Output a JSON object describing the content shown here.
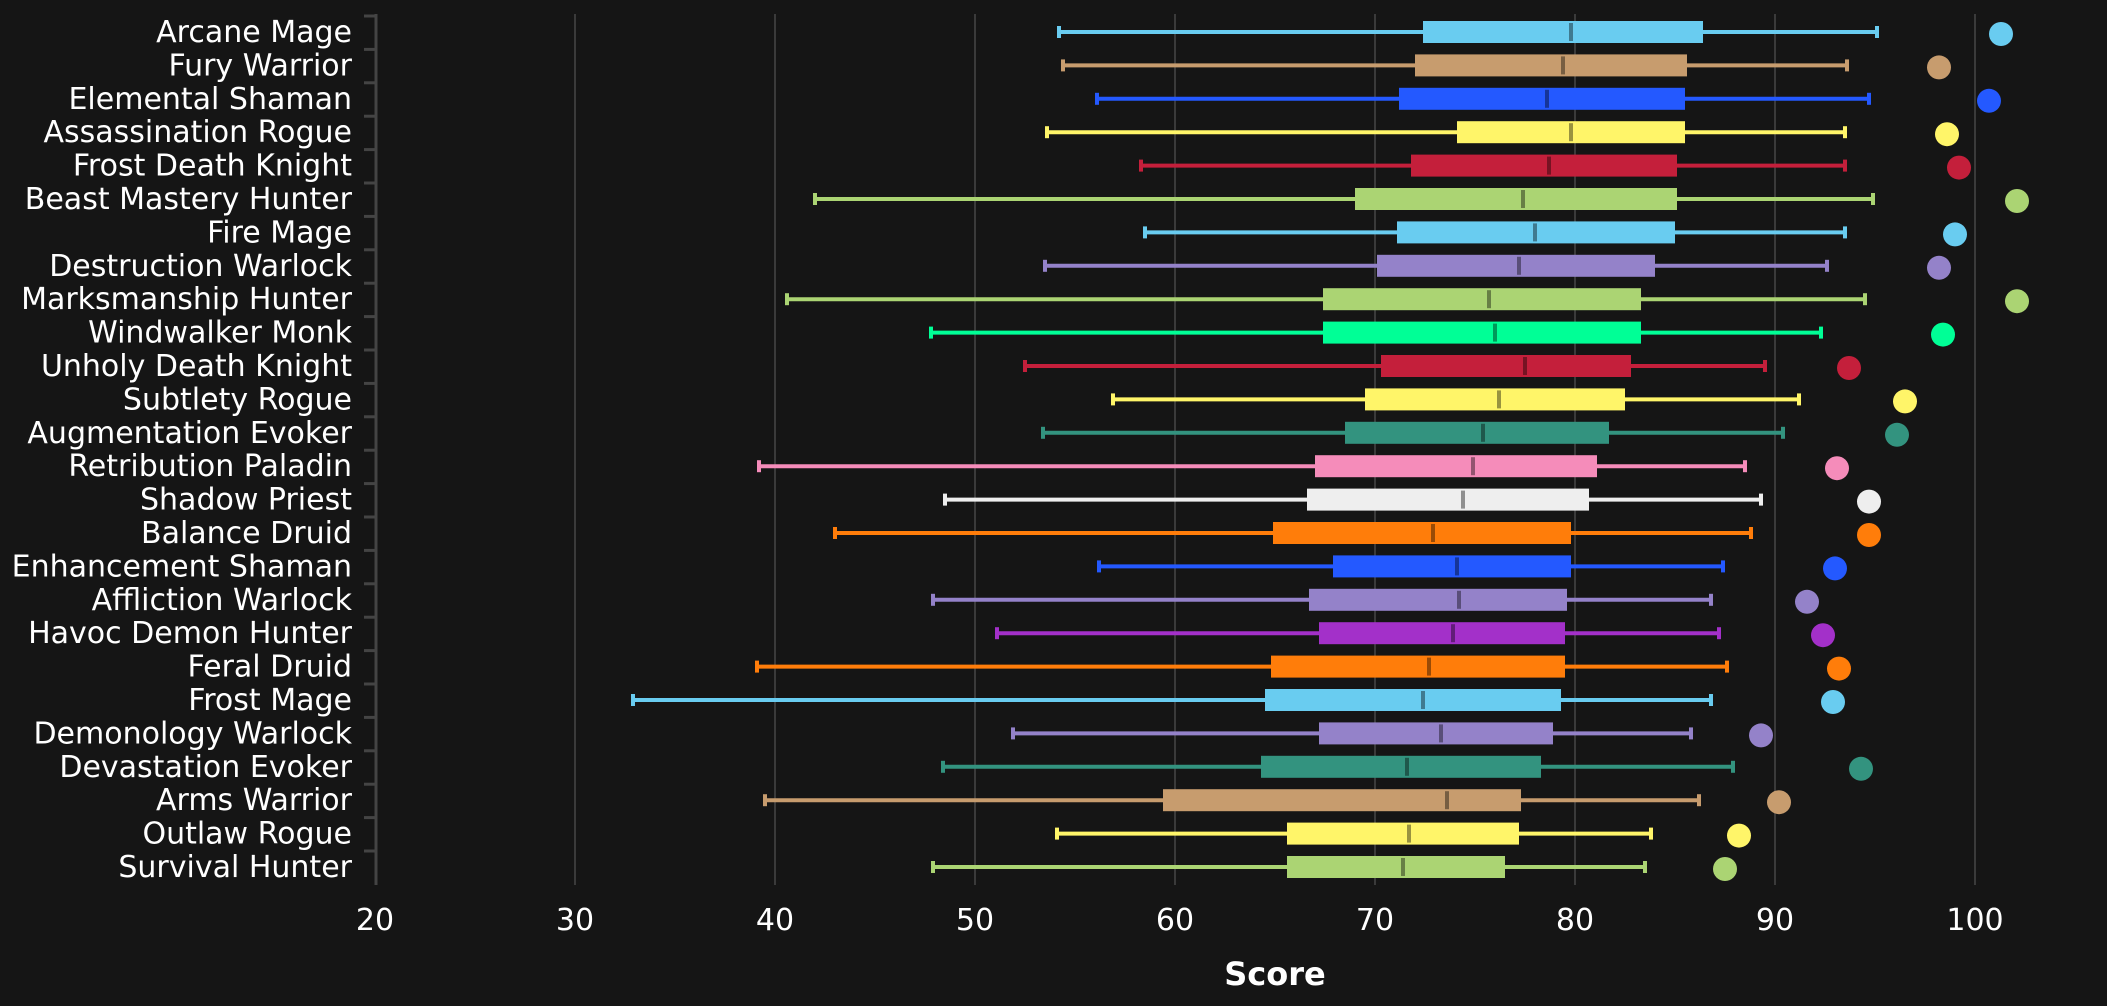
{
  "chart_data": {
    "type": "box",
    "title": "",
    "xlabel": "Score",
    "ylabel": "",
    "xlim": [
      20,
      105
    ],
    "xticks": [
      20,
      30,
      40,
      50,
      60,
      70,
      80,
      90,
      100
    ],
    "grid": true,
    "legend": "none",
    "series": [
      {
        "name": "Arcane Mage",
        "color": "#69CCF0",
        "min": 54.2,
        "q1": 72.4,
        "median": 79.8,
        "q3": 86.4,
        "max": 95.1,
        "max_point": 101.3
      },
      {
        "name": "Fury Warrior",
        "color": "#C79C6E",
        "min": 54.4,
        "q1": 72.0,
        "median": 79.4,
        "q3": 85.6,
        "max": 93.6,
        "max_point": 98.2
      },
      {
        "name": "Elemental Shaman",
        "color": "#2459FF",
        "min": 56.1,
        "q1": 71.2,
        "median": 78.6,
        "q3": 85.5,
        "max": 94.7,
        "max_point": 100.7
      },
      {
        "name": "Assassination Rogue",
        "color": "#FFF569",
        "min": 53.6,
        "q1": 74.1,
        "median": 79.8,
        "q3": 85.5,
        "max": 93.5,
        "max_point": 98.6
      },
      {
        "name": "Frost Death Knight",
        "color": "#C41F3B",
        "min": 58.3,
        "q1": 71.8,
        "median": 78.7,
        "q3": 85.1,
        "max": 93.5,
        "max_point": 99.2
      },
      {
        "name": "Beast Mastery Hunter",
        "color": "#ABD473",
        "min": 42.0,
        "q1": 69.0,
        "median": 77.4,
        "q3": 85.1,
        "max": 94.9,
        "max_point": 102.1
      },
      {
        "name": "Fire Mage",
        "color": "#69CCF0",
        "min": 58.5,
        "q1": 71.1,
        "median": 78.0,
        "q3": 85.0,
        "max": 93.5,
        "max_point": 99.0
      },
      {
        "name": "Destruction Warlock",
        "color": "#9482C9",
        "min": 53.5,
        "q1": 70.1,
        "median": 77.2,
        "q3": 84.0,
        "max": 92.6,
        "max_point": 98.2
      },
      {
        "name": "Marksmanship Hunter",
        "color": "#ABD473",
        "min": 40.6,
        "q1": 67.4,
        "median": 75.7,
        "q3": 83.3,
        "max": 94.5,
        "max_point": 102.1
      },
      {
        "name": "Windwalker Monk",
        "color": "#00FF96",
        "min": 47.8,
        "q1": 67.4,
        "median": 76.0,
        "q3": 83.3,
        "max": 92.3,
        "max_point": 98.4
      },
      {
        "name": "Unholy Death Knight",
        "color": "#C41F3B",
        "min": 52.5,
        "q1": 70.3,
        "median": 77.5,
        "q3": 82.8,
        "max": 89.5,
        "max_point": 93.7
      },
      {
        "name": "Subtlety Rogue",
        "color": "#FFF569",
        "min": 56.9,
        "q1": 69.5,
        "median": 76.2,
        "q3": 82.5,
        "max": 91.2,
        "max_point": 96.5
      },
      {
        "name": "Augmentation Evoker",
        "color": "#33937F",
        "min": 53.4,
        "q1": 68.5,
        "median": 75.4,
        "q3": 81.7,
        "max": 90.4,
        "max_point": 96.1
      },
      {
        "name": "Retribution Paladin",
        "color": "#F58CBA",
        "min": 39.2,
        "q1": 67.0,
        "median": 74.9,
        "q3": 81.1,
        "max": 88.5,
        "max_point": 93.1
      },
      {
        "name": "Shadow Priest",
        "color": "#EEEEEE",
        "min": 48.5,
        "q1": 66.6,
        "median": 74.4,
        "q3": 80.7,
        "max": 89.3,
        "max_point": 94.7
      },
      {
        "name": "Balance Druid",
        "color": "#FF7D0A",
        "min": 43.0,
        "q1": 64.9,
        "median": 72.9,
        "q3": 79.8,
        "max": 88.8,
        "max_point": 94.7
      },
      {
        "name": "Enhancement Shaman",
        "color": "#2459FF",
        "min": 56.2,
        "q1": 67.9,
        "median": 74.1,
        "q3": 79.8,
        "max": 87.4,
        "max_point": 93.0
      },
      {
        "name": "Affliction Warlock",
        "color": "#9482C9",
        "min": 47.9,
        "q1": 66.7,
        "median": 74.2,
        "q3": 79.6,
        "max": 86.8,
        "max_point": 91.6
      },
      {
        "name": "Havoc Demon Hunter",
        "color": "#A330C9",
        "min": 51.1,
        "q1": 67.2,
        "median": 73.9,
        "q3": 79.5,
        "max": 87.2,
        "max_point": 92.4
      },
      {
        "name": "Feral Druid",
        "color": "#FF7D0A",
        "min": 39.1,
        "q1": 64.8,
        "median": 72.7,
        "q3": 79.5,
        "max": 87.6,
        "max_point": 93.2
      },
      {
        "name": "Frost Mage",
        "color": "#69CCF0",
        "min": 32.9,
        "q1": 64.5,
        "median": 72.4,
        "q3": 79.3,
        "max": 86.8,
        "max_point": 92.9
      },
      {
        "name": "Demonology Warlock",
        "color": "#9482C9",
        "min": 51.9,
        "q1": 67.2,
        "median": 73.3,
        "q3": 78.9,
        "max": 85.8,
        "max_point": 89.3
      },
      {
        "name": "Devastation Evoker",
        "color": "#33937F",
        "min": 48.4,
        "q1": 64.3,
        "median": 71.6,
        "q3": 78.3,
        "max": 87.9,
        "max_point": 94.3
      },
      {
        "name": "Arms Warrior",
        "color": "#C79C6E",
        "min": 39.5,
        "q1": 59.4,
        "median": 73.6,
        "q3": 77.3,
        "max": 86.2,
        "max_point": 90.2
      },
      {
        "name": "Outlaw Rogue",
        "color": "#FFF569",
        "min": 54.1,
        "q1": 65.6,
        "median": 71.7,
        "q3": 77.2,
        "max": 83.8,
        "max_point": 88.2
      },
      {
        "name": "Survival Hunter",
        "color": "#ABD473",
        "min": 47.9,
        "q1": 65.6,
        "median": 71.4,
        "q3": 76.5,
        "max": 83.5,
        "max_point": 87.5
      }
    ]
  }
}
